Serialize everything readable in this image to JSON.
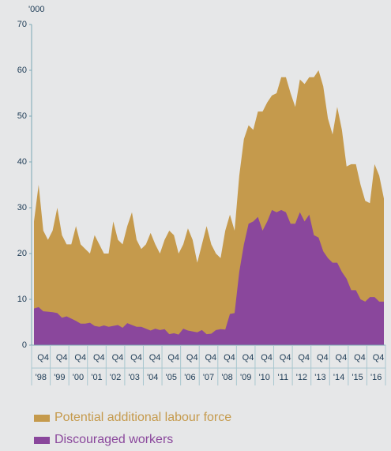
{
  "chart_data": {
    "type": "area",
    "unit_label": "'000",
    "categories": [
      null,
      null,
      null,
      "Q4",
      null,
      null,
      null,
      "Q4",
      null,
      null,
      null,
      "Q4",
      null,
      null,
      null,
      "Q4",
      null,
      null,
      null,
      "Q4",
      null,
      null,
      null,
      "Q4",
      null,
      null,
      null,
      "Q4",
      null,
      null,
      null,
      "Q4",
      null,
      null,
      null,
      "Q4",
      null,
      null,
      null,
      "Q4",
      null,
      null,
      null,
      "Q4",
      null,
      null,
      null,
      "Q4",
      null,
      null,
      null,
      "Q4",
      null,
      null,
      null,
      "Q4",
      null,
      null,
      null,
      "Q4",
      null,
      null,
      null,
      "Q4",
      null,
      null,
      null,
      "Q4",
      null,
      null,
      null,
      "Q4",
      null,
      null,
      null,
      "Q4"
    ],
    "years": [
      "'98",
      "'99",
      "'00",
      "'01",
      "'02",
      "'03",
      "'04",
      "'05",
      "'06",
      "'07",
      "'08",
      "'09",
      "'10",
      "'11",
      "'12",
      "'13",
      "'14",
      "'15",
      "'16"
    ],
    "ylim": [
      0,
      70
    ],
    "yticks": [
      0,
      10,
      20,
      30,
      40,
      50,
      60,
      70
    ],
    "series": [
      {
        "name": "Potential additional labour force",
        "color": "#c59a4c",
        "values": [
          27,
          35,
          25,
          23,
          25,
          30,
          24,
          22,
          22,
          26,
          22,
          21,
          20,
          24,
          22,
          20,
          20,
          27,
          23,
          22,
          26,
          29,
          23,
          21,
          22,
          24.5,
          22,
          20,
          23,
          25,
          24,
          20,
          22,
          25.5,
          23,
          18,
          22,
          26,
          22,
          20,
          19,
          25,
          28.5,
          25,
          37,
          45,
          48,
          47,
          51,
          51,
          53,
          54.5,
          55,
          58.5,
          58.5,
          55,
          52,
          58,
          57,
          58.5,
          58.5,
          60,
          56.5,
          49.5,
          46,
          52,
          47,
          39,
          39.5,
          39.5,
          35,
          31.5,
          31,
          39.5,
          37,
          32
        ]
      },
      {
        "name": "Discouraged workers",
        "color": "#8a479c",
        "values": [
          8,
          8.3,
          7.4,
          7.3,
          7.2,
          7,
          6,
          6.3,
          5.8,
          5.3,
          4.7,
          4.7,
          4.9,
          4.2,
          4,
          4.3,
          4,
          4.2,
          4.4,
          3.8,
          4.8,
          4.4,
          4,
          4,
          3.6,
          3.2,
          3.6,
          3.3,
          3.5,
          2.4,
          2.6,
          2.3,
          3.6,
          3.2,
          3,
          2.8,
          3.3,
          2.4,
          2.5,
          3.3,
          3.5,
          3.4,
          6.8,
          7,
          16,
          22,
          26.5,
          27,
          28,
          25,
          27,
          29.5,
          29,
          29.5,
          29,
          26.5,
          26.5,
          29,
          27,
          28.5,
          24,
          23.5,
          20.5,
          19,
          18,
          18,
          16,
          14.5,
          12,
          12,
          10,
          9.5,
          10.5,
          10.5,
          9.5,
          9.5
        ]
      }
    ]
  }
}
